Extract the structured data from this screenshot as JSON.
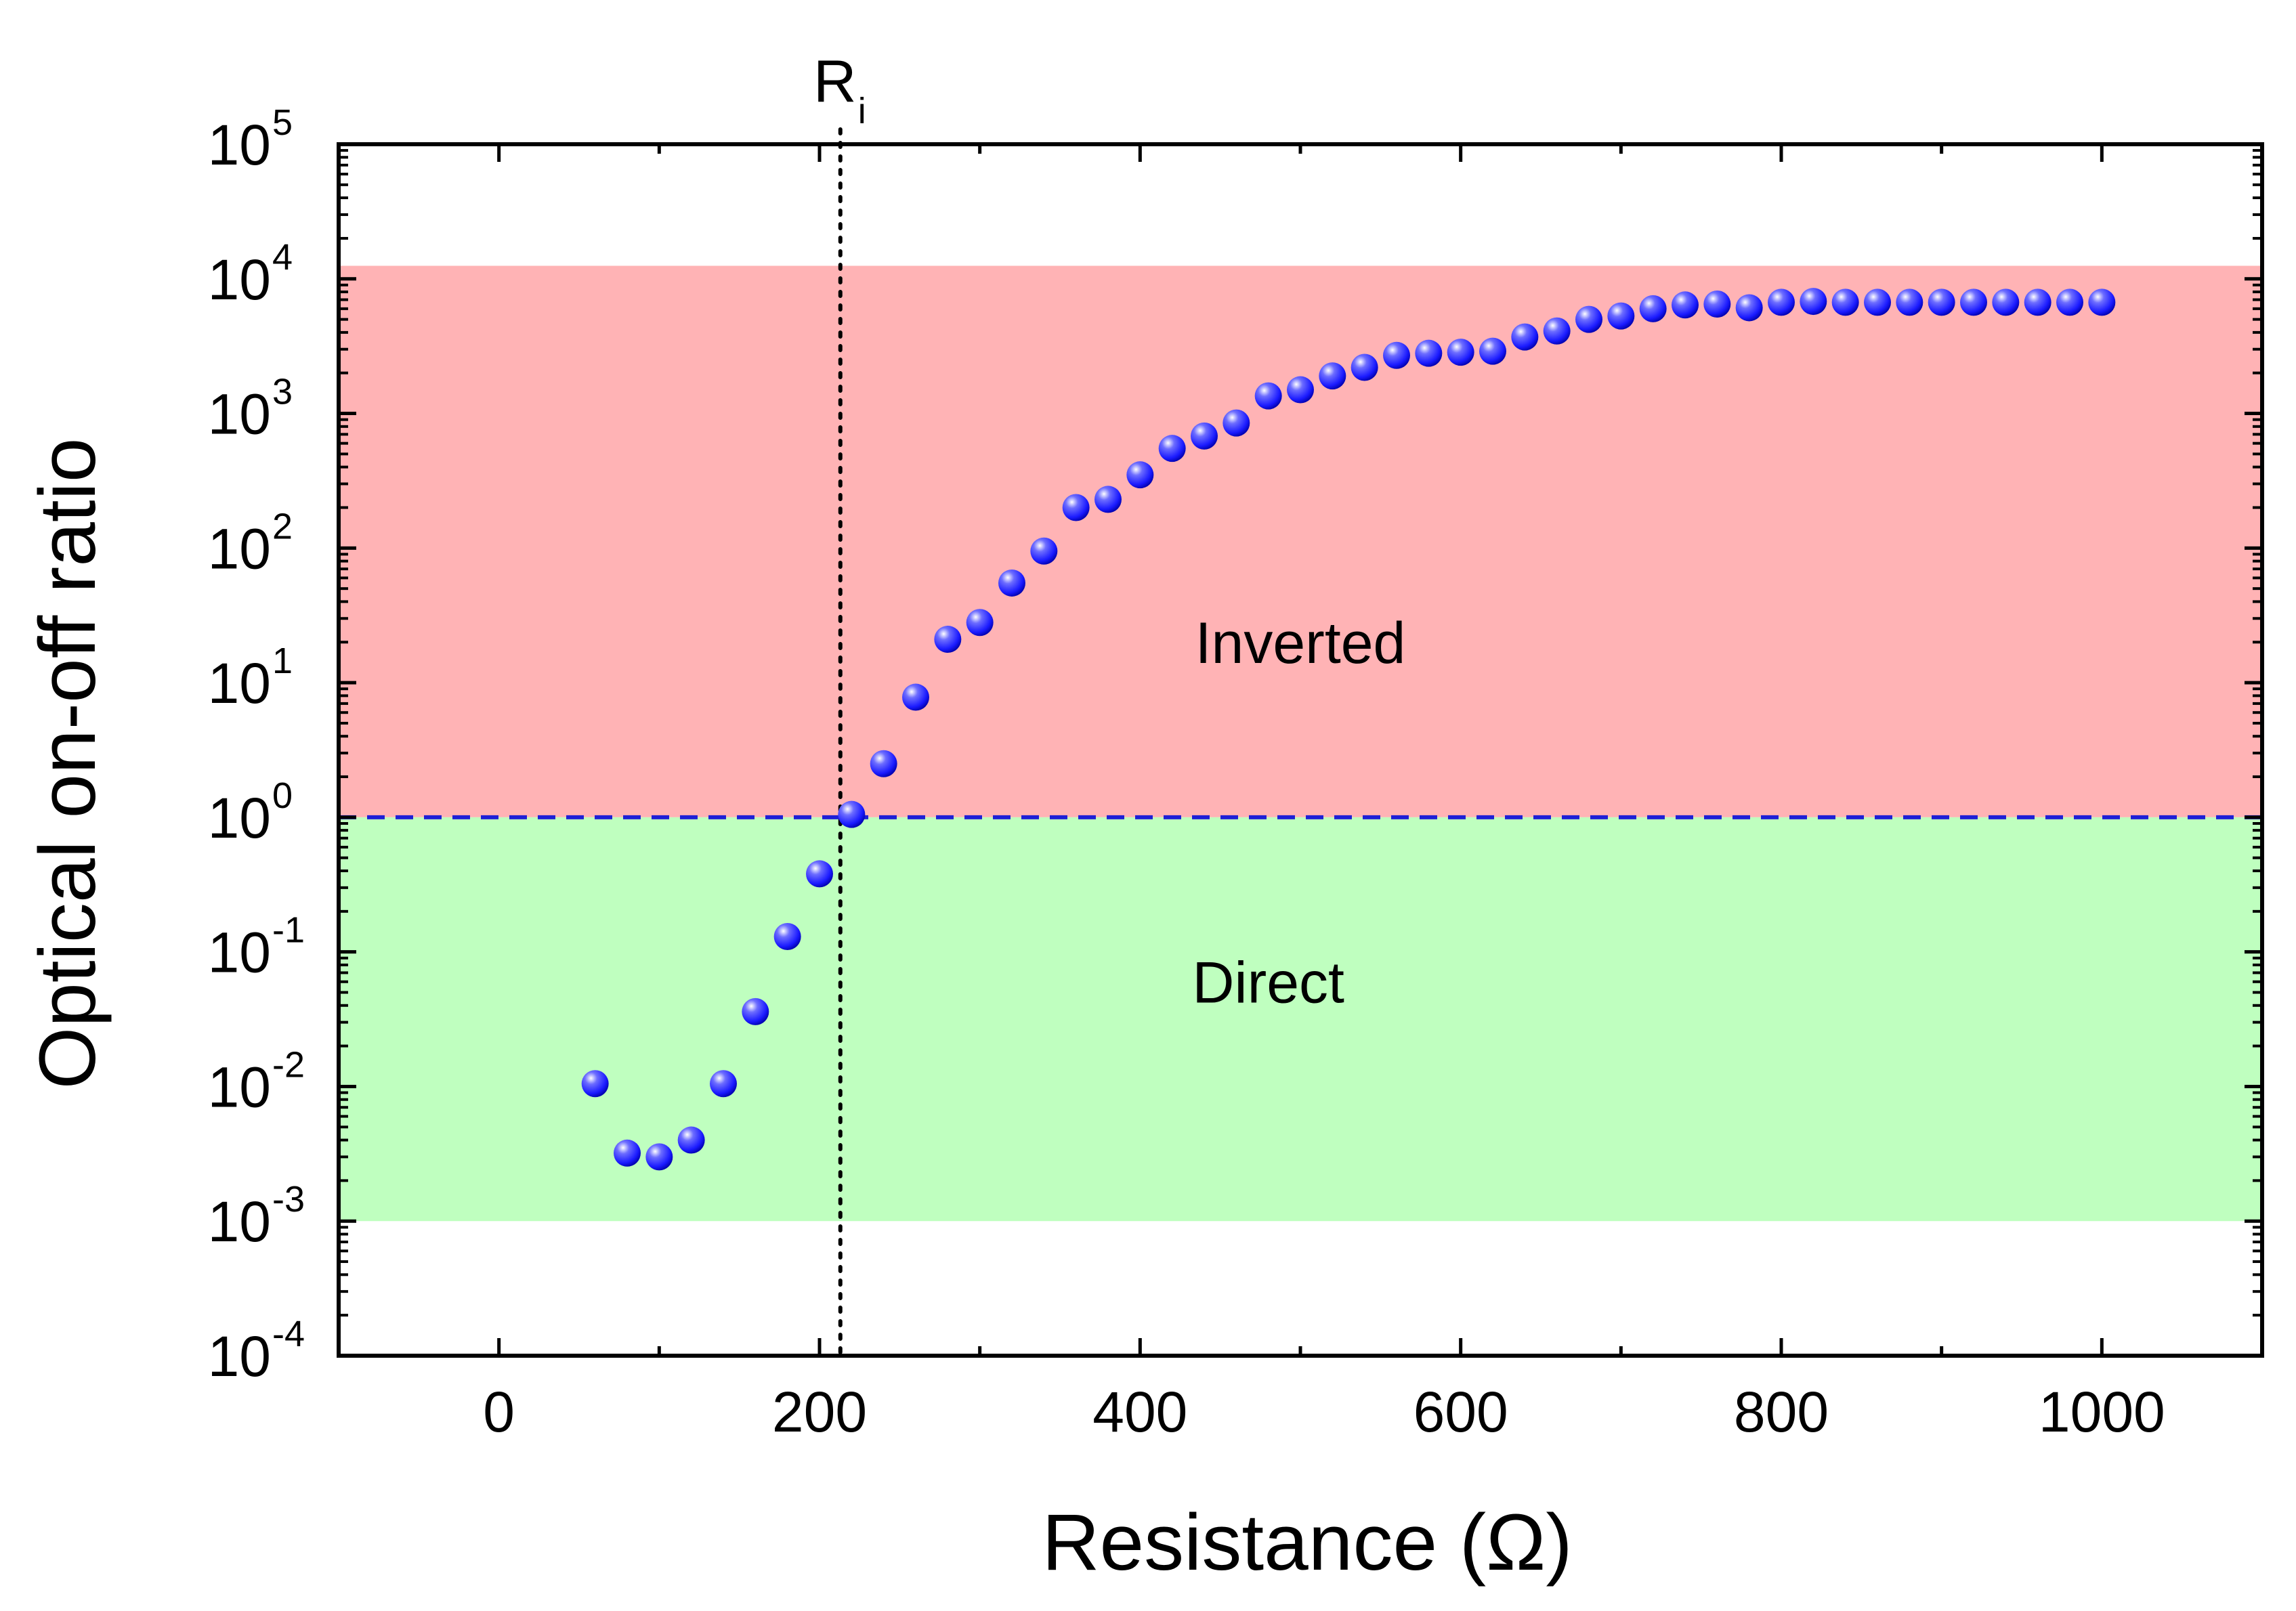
{
  "chart_data": {
    "type": "scatter",
    "title": "",
    "xlabel": "Resistance (Ω)",
    "ylabel": "Optical on-off ratio",
    "xlim": [
      -100,
      1100
    ],
    "ylim_log10": [
      -4,
      5
    ],
    "y_scale": "log",
    "x_ticks": [
      0,
      200,
      400,
      600,
      800,
      1000
    ],
    "x_tick_labels": [
      "0",
      "200",
      "400",
      "600",
      "800",
      "1000"
    ],
    "y_tick_exponents": [
      5,
      4,
      3,
      2,
      1,
      0,
      -1,
      -2,
      -3,
      -4
    ],
    "y_tick_base": "10",
    "y_tick_powers": [
      "5",
      "4",
      "3",
      "2",
      "1",
      "0",
      "-1",
      "-2",
      "-3",
      "-4"
    ],
    "regions": [
      {
        "name": "Inverted",
        "label": "Inverted",
        "y_from": 1,
        "y_to": 12500,
        "color": "#ffb3b5",
        "label_at": {
          "x": 500,
          "y": 14
        }
      },
      {
        "name": "Direct",
        "label": "Direct",
        "y_from": 0.001,
        "y_to": 1,
        "color": "#bfffbf",
        "label_at": {
          "x": 480,
          "y": 0.042
        }
      }
    ],
    "reference_lines": [
      {
        "type": "horizontal",
        "y": 1,
        "style": "dashed",
        "color": "#1f1fd6"
      },
      {
        "type": "vertical",
        "x": 213,
        "style": "dotted",
        "color": "#000000",
        "label": "R",
        "label_sub": "i"
      }
    ],
    "series": [
      {
        "name": "on-off ratio",
        "marker": "sphere",
        "color": "#1a1aff",
        "x": [
          60,
          80,
          100,
          120,
          140,
          160,
          180,
          200,
          220,
          240,
          260,
          280,
          300,
          320,
          340,
          360,
          380,
          400,
          420,
          440,
          460,
          480,
          500,
          520,
          540,
          560,
          580,
          600,
          620,
          640,
          660,
          680,
          700,
          720,
          740,
          760,
          780,
          800,
          820,
          840,
          860,
          880,
          900,
          920,
          940,
          960,
          980,
          1000
        ],
        "y": [
          0.0105,
          0.0032,
          0.003,
          0.004,
          0.0105,
          0.036,
          0.13,
          0.38,
          1.05,
          2.5,
          7.8,
          21,
          28,
          55,
          95,
          200,
          230,
          350,
          550,
          680,
          850,
          1350,
          1500,
          1900,
          2200,
          2700,
          2800,
          2850,
          2900,
          3700,
          4100,
          5000,
          5300,
          6000,
          6400,
          6500,
          6100,
          6700,
          6800,
          6700,
          6700,
          6700,
          6700,
          6700,
          6700,
          6700,
          6700,
          6700
        ]
      }
    ]
  }
}
